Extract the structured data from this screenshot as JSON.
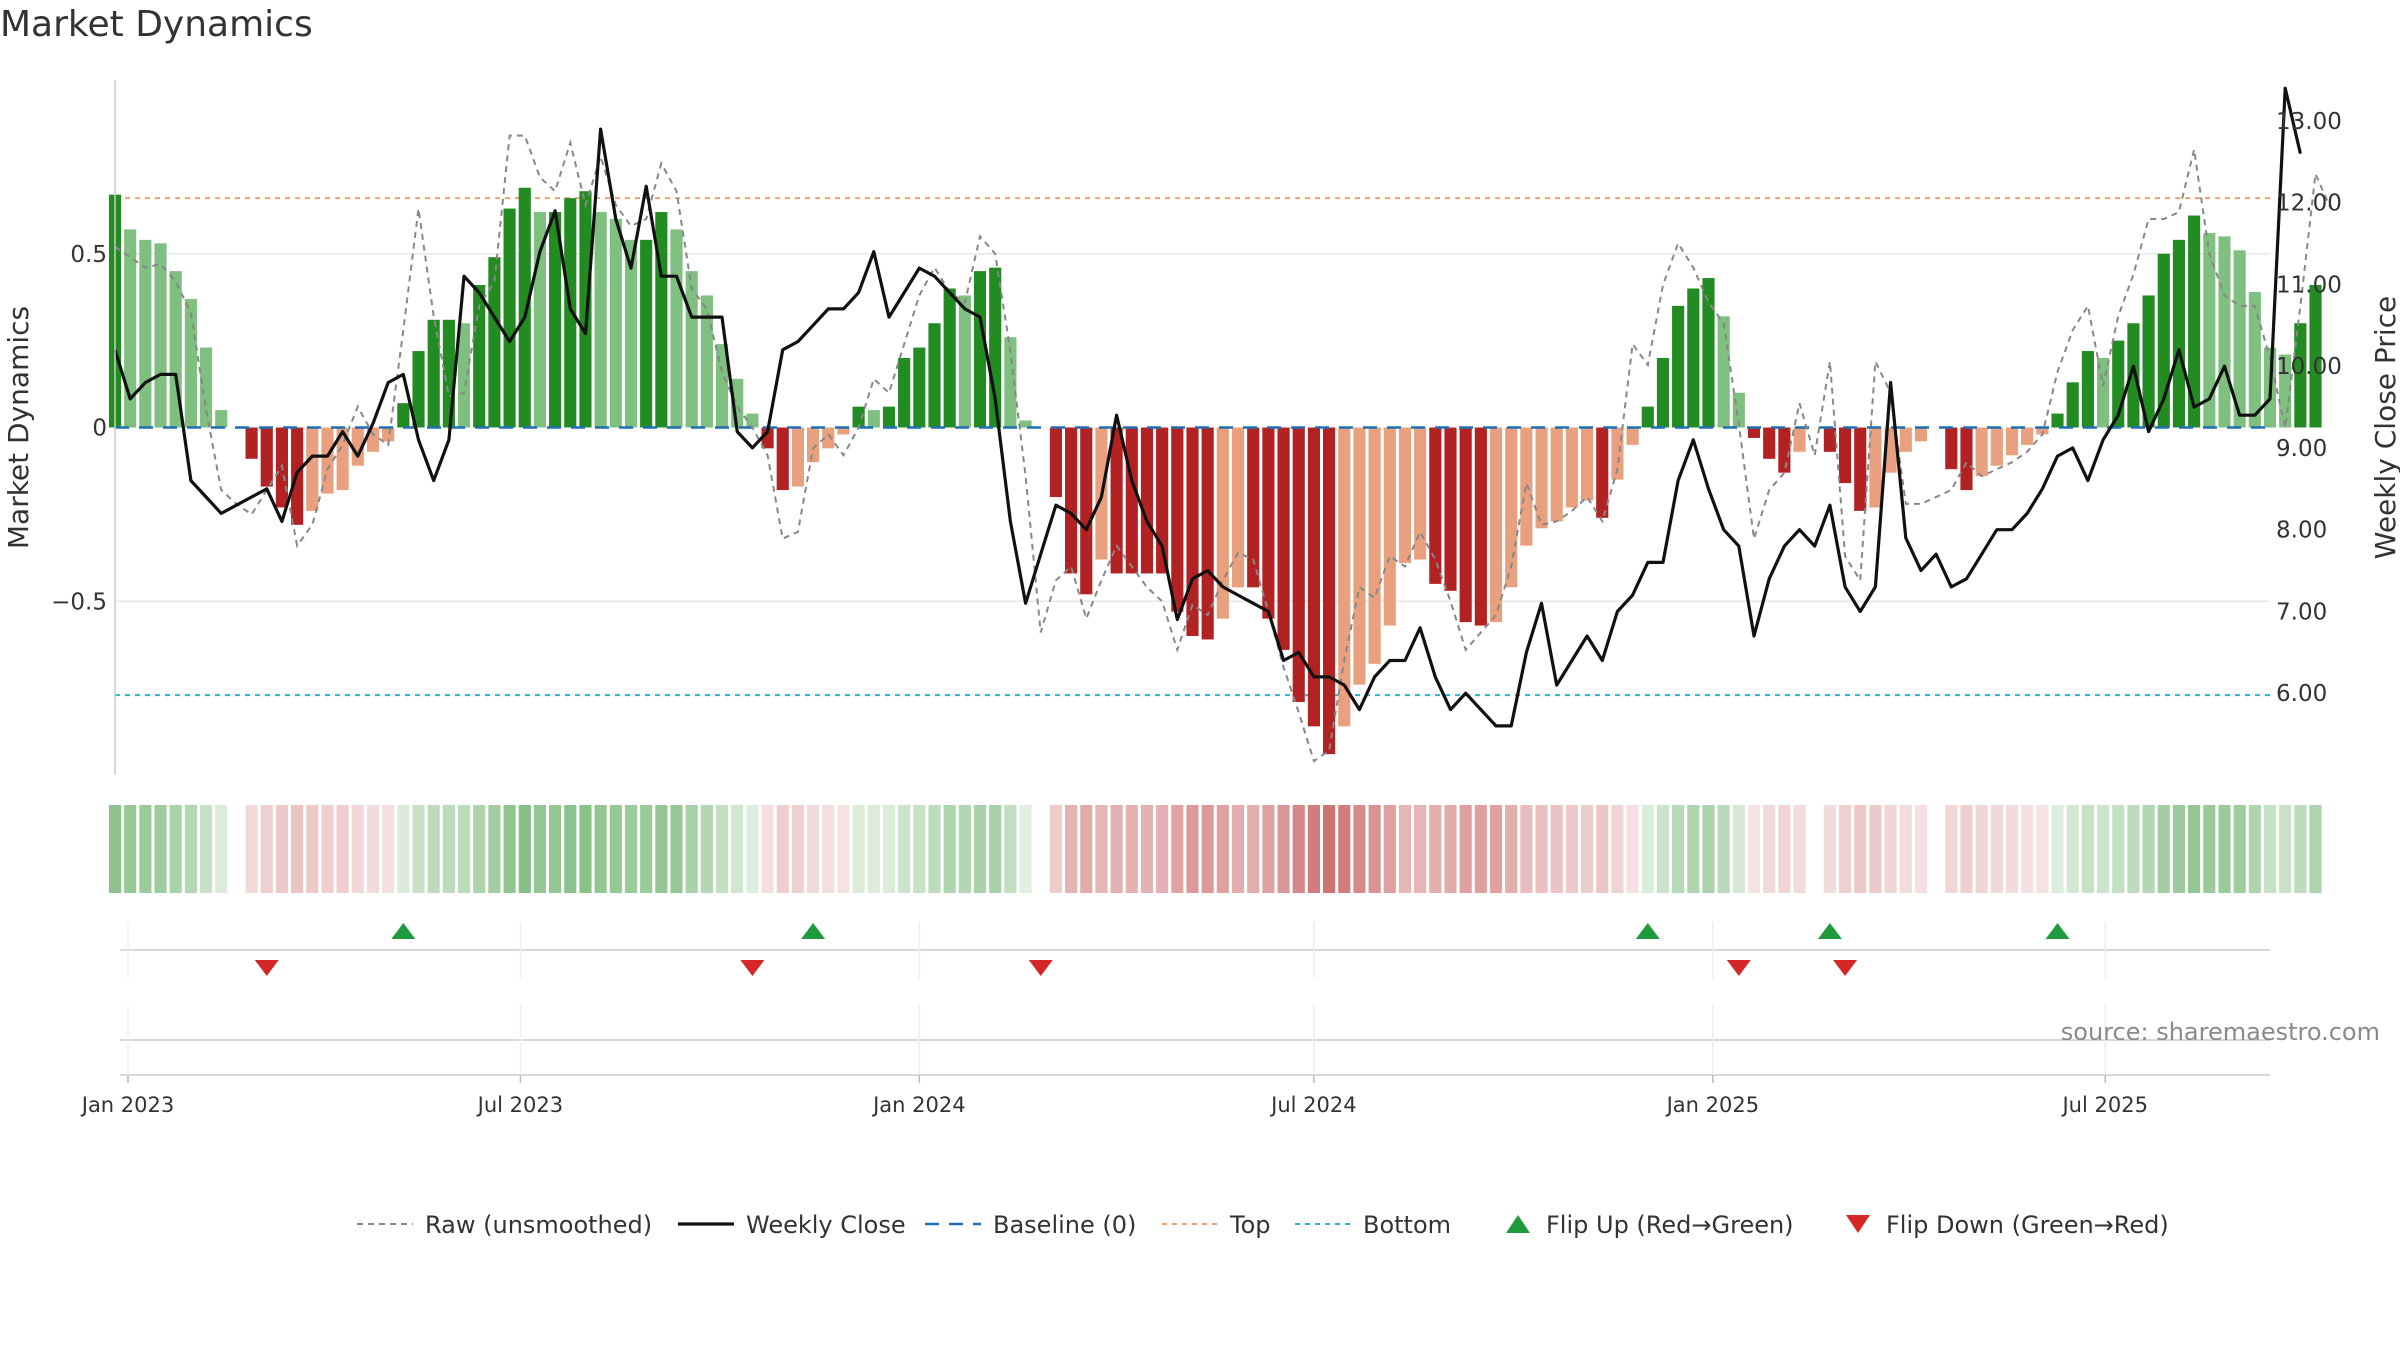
{
  "title": "Market Dynamics",
  "source": "source: sharemaestro.com",
  "colors": {
    "strong_green": "#228b22",
    "light_green": "#7fbf7f",
    "strong_red": "#b22222",
    "light_red": "#e8a07f",
    "close_line": "#111111",
    "raw_line": "#888888",
    "baseline": "#1f6fb4",
    "top": "#f0a070",
    "bottom": "#22b8d0",
    "flip_up": "#1e9b3c",
    "flip_down": "#d62728"
  },
  "chart_data": {
    "type": "bar",
    "title": "Market Dynamics",
    "ylabel": "Market Dynamics",
    "y2label": "Weekly Close Price",
    "ylim": [
      -1.0,
      1.0
    ],
    "y2lim": [
      5.0,
      13.5
    ],
    "x_start": "2022-12-26",
    "x_end": "2025-09-15",
    "week_start": "2022-12-26",
    "yticks": [
      {
        "v": 0.5,
        "label": "0.5"
      },
      {
        "v": 0,
        "label": "0"
      },
      {
        "v": -0.5,
        "label": "−0.5"
      }
    ],
    "y2ticks": [
      "13.00",
      "12.00",
      "11.00",
      "10.00",
      "9.00",
      "8.00",
      "7.00",
      "6.00"
    ],
    "top_level": 0.66,
    "bottom_level": -0.77,
    "baseline_level": 0,
    "date_ticks": [
      {
        "date": "2023-01-01",
        "label": "Jan 2023"
      },
      {
        "date": "2023-07-01",
        "label": "Jul 2023"
      },
      {
        "date": "2024-01-01",
        "label": "Jan 2024"
      },
      {
        "date": "2024-07-01",
        "label": "Jul 2024"
      },
      {
        "date": "2025-01-01",
        "label": "Jan 2025"
      },
      {
        "date": "2025-07-01",
        "label": "Jul 2025"
      }
    ],
    "dynamics": [
      0.67,
      0.57,
      0.54,
      0.53,
      0.45,
      0.37,
      0.23,
      0.05,
      0,
      -0.09,
      -0.17,
      -0.23,
      -0.28,
      -0.24,
      -0.19,
      -0.18,
      -0.11,
      -0.07,
      -0.04,
      0.07,
      0.22,
      0.31,
      0.31,
      0.3,
      0.41,
      0.49,
      0.63,
      0.69,
      0.62,
      0.62,
      0.66,
      0.68,
      0.62,
      0.6,
      0.54,
      0.54,
      0.62,
      0.57,
      0.45,
      0.38,
      0.24,
      0.14,
      0.04,
      -0.06,
      -0.18,
      -0.17,
      -0.1,
      -0.06,
      -0.02,
      0.06,
      0.05,
      0.06,
      0.2,
      0.23,
      0.3,
      0.4,
      0.38,
      0.45,
      0.46,
      0.26,
      0.02,
      0,
      -0.2,
      -0.42,
      -0.48,
      -0.38,
      -0.42,
      -0.42,
      -0.42,
      -0.42,
      -0.53,
      -0.6,
      -0.61,
      -0.55,
      -0.46,
      -0.46,
      -0.55,
      -0.64,
      -0.79,
      -0.86,
      -0.94,
      -0.86,
      -0.74,
      -0.68,
      -0.57,
      -0.39,
      -0.38,
      -0.45,
      -0.47,
      -0.56,
      -0.57,
      -0.56,
      -0.46,
      -0.34,
      -0.29,
      -0.27,
      -0.23,
      -0.21,
      -0.26,
      -0.15,
      -0.05,
      0.06,
      0.2,
      0.35,
      0.4,
      0.43,
      0.32,
      0.1,
      -0.03,
      -0.09,
      -0.13,
      -0.07,
      0,
      -0.07,
      -0.16,
      -0.24,
      -0.23,
      -0.13,
      -0.07,
      -0.04,
      0,
      -0.12,
      -0.18,
      -0.14,
      -0.11,
      -0.08,
      -0.05,
      -0.02,
      0.04,
      0.13,
      0.22,
      0.2,
      0.25,
      0.3,
      0.38,
      0.5,
      0.54,
      0.61,
      0.56,
      0.55,
      0.51,
      0.39,
      0.23,
      0.21,
      0.3,
      0.41
    ],
    "close": [
      10.2,
      9.6,
      9.8,
      9.9,
      9.9,
      8.6,
      8.4,
      8.2,
      8.3,
      8.4,
      8.5,
      8.1,
      8.7,
      8.9,
      8.9,
      9.2,
      8.9,
      9.3,
      9.8,
      9.9,
      9.1,
      8.6,
      9.1,
      11.1,
      10.9,
      10.6,
      10.3,
      10.6,
      11.4,
      11.9,
      10.7,
      10.4,
      12.9,
      11.8,
      11.2,
      12.2,
      11.1,
      11.1,
      10.6,
      10.6,
      10.6,
      9.2,
      9.0,
      9.2,
      10.2,
      10.3,
      10.5,
      10.7,
      10.7,
      10.9,
      11.4,
      10.6,
      10.9,
      11.2,
      11.1,
      10.9,
      10.7,
      10.6,
      9.6,
      8.1,
      7.1,
      7.7,
      8.3,
      8.2,
      8.0,
      8.4,
      9.4,
      8.6,
      8.1,
      7.8,
      6.9,
      7.4,
      7.5,
      7.3,
      7.2,
      7.1,
      7.0,
      6.4,
      6.5,
      6.2,
      6.2,
      6.1,
      5.8,
      6.2,
      6.4,
      6.4,
      6.8,
      6.2,
      5.8,
      6.0,
      5.8,
      5.6,
      5.6,
      6.5,
      7.1,
      6.1,
      6.4,
      6.7,
      6.4,
      7.0,
      7.2,
      7.6,
      7.6,
      8.6,
      9.1,
      8.5,
      8.0,
      7.8,
      6.7,
      7.4,
      7.8,
      8.0,
      7.8,
      8.3,
      7.3,
      7.0,
      7.3,
      9.8,
      7.9,
      7.5,
      7.7,
      7.3,
      7.4,
      7.7,
      8.0,
      8.0,
      8.2,
      8.5,
      8.9,
      9.0,
      8.6,
      9.1,
      9.4,
      10.0,
      9.2,
      9.6,
      10.2,
      9.5,
      9.6,
      10.0,
      9.4,
      9.4,
      9.6,
      13.4,
      12.6
    ],
    "raw": [
      0.52,
      0.49,
      0.46,
      0.47,
      0.42,
      0.33,
      0.05,
      -0.18,
      -0.22,
      -0.25,
      -0.18,
      -0.11,
      -0.34,
      -0.28,
      -0.12,
      -0.05,
      0.06,
      -0.02,
      -0.05,
      0.28,
      0.63,
      0.32,
      0.09,
      0.1,
      0.35,
      0.42,
      0.84,
      0.84,
      0.72,
      0.68,
      0.82,
      0.64,
      0.78,
      0.64,
      0.58,
      0.6,
      0.76,
      0.68,
      0.4,
      0.34,
      0.16,
      0.06,
      0.0,
      -0.08,
      -0.32,
      -0.3,
      -0.06,
      -0.02,
      -0.08,
      0.0,
      0.14,
      0.1,
      0.24,
      0.38,
      0.46,
      0.39,
      0.36,
      0.55,
      0.5,
      0.22,
      -0.14,
      -0.59,
      -0.44,
      -0.4,
      -0.55,
      -0.44,
      -0.34,
      -0.4,
      -0.46,
      -0.5,
      -0.64,
      -0.51,
      -0.54,
      -0.44,
      -0.36,
      -0.38,
      -0.53,
      -0.69,
      -0.82,
      -0.96,
      -0.93,
      -0.67,
      -0.46,
      -0.49,
      -0.37,
      -0.4,
      -0.3,
      -0.38,
      -0.5,
      -0.64,
      -0.59,
      -0.54,
      -0.4,
      -0.16,
      -0.28,
      -0.27,
      -0.24,
      -0.2,
      -0.27,
      -0.12,
      0.24,
      0.18,
      0.41,
      0.53,
      0.46,
      0.36,
      0.3,
      0.01,
      -0.32,
      -0.18,
      -0.13,
      0.07,
      -0.08,
      0.19,
      -0.37,
      -0.44,
      0.19,
      0.1,
      -0.22,
      -0.22,
      -0.2,
      -0.18,
      -0.1,
      -0.14,
      -0.12,
      -0.1,
      -0.07,
      -0.02,
      0.16,
      0.28,
      0.35,
      0.12,
      0.32,
      0.44,
      0.6,
      0.6,
      0.62,
      0.8,
      0.5,
      0.38,
      0.35,
      0.35,
      0.2,
      0.0,
      0.35,
      0.73,
      0.63
    ],
    "flip_up": [
      "2023-05-08",
      "2023-11-13",
      "2024-12-02",
      "2025-02-24",
      "2025-06-09"
    ],
    "flip_down": [
      "2023-03-06",
      "2023-10-16",
      "2024-02-26",
      "2025-01-13",
      "2025-03-03"
    ],
    "legend": [
      {
        "key": "raw",
        "label": "Raw (unsmoothed)"
      },
      {
        "key": "close",
        "label": "Weekly Close"
      },
      {
        "key": "baseline",
        "label": "Baseline (0)"
      },
      {
        "key": "top",
        "label": "Top"
      },
      {
        "key": "bottom",
        "label": "Bottom"
      },
      {
        "key": "flip_up",
        "label": "Flip Up (Red→Green)"
      },
      {
        "key": "flip_down",
        "label": "Flip Down (Green→Red)"
      }
    ]
  }
}
